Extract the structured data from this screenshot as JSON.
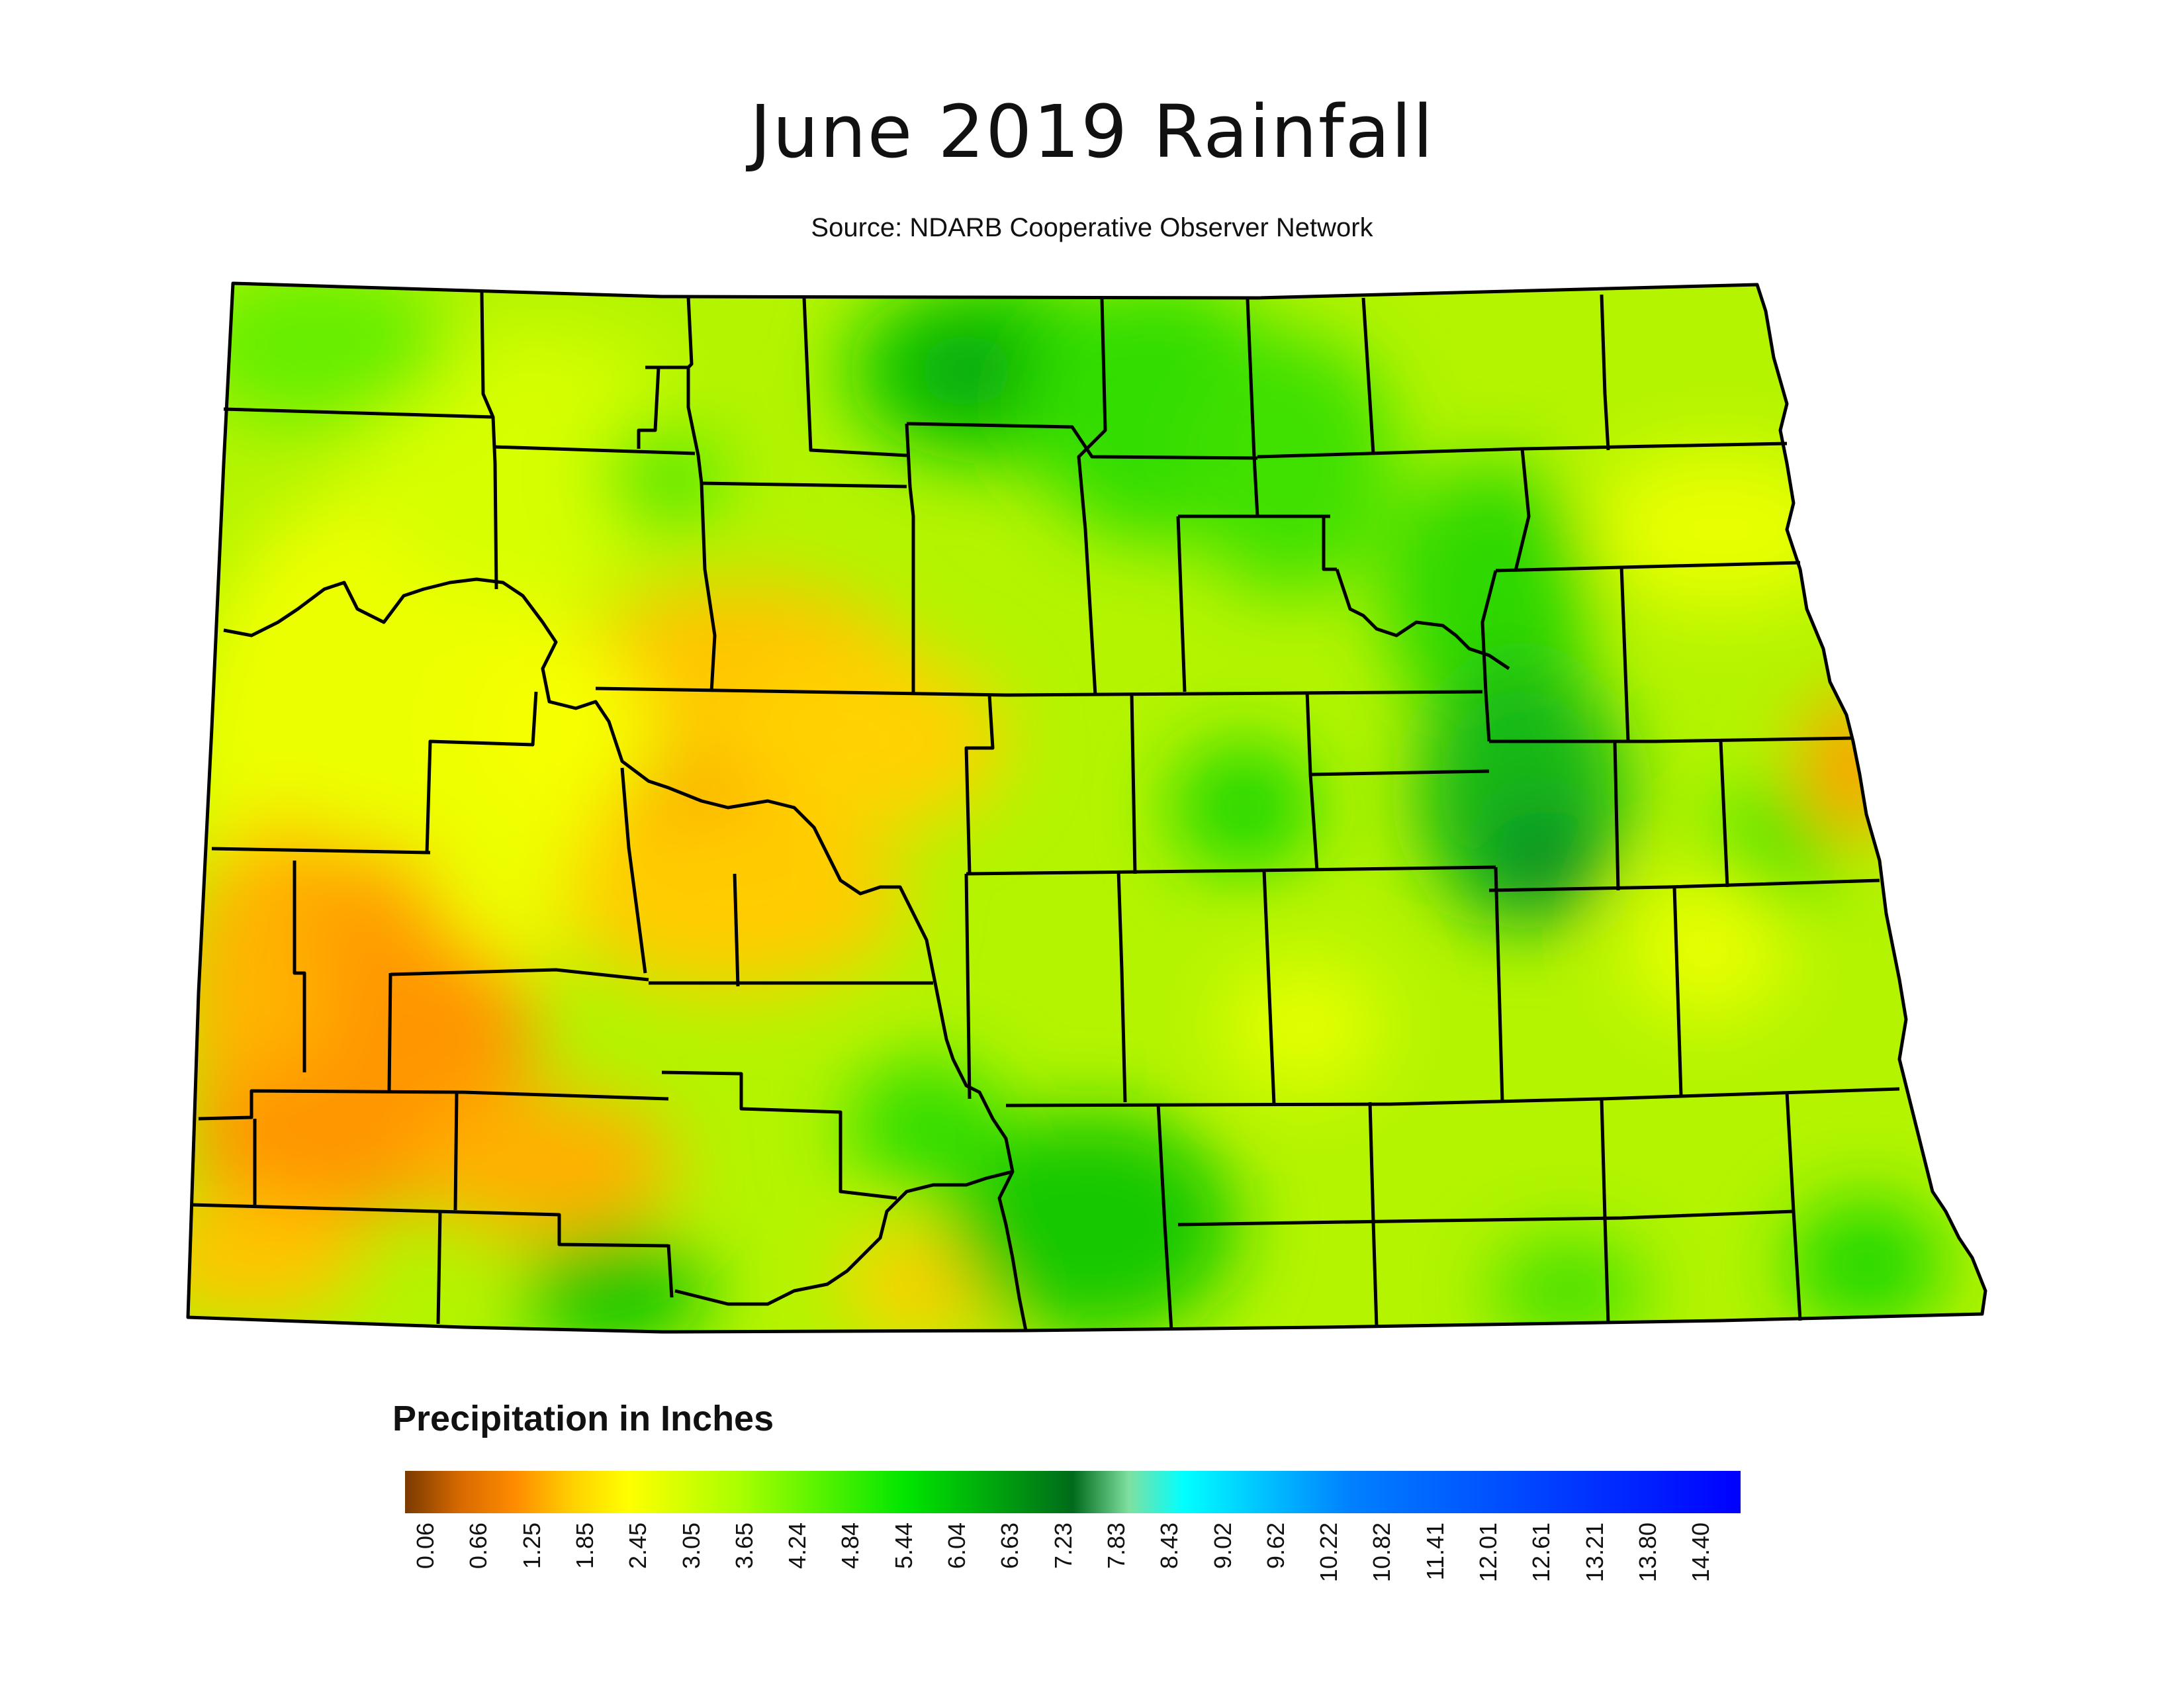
{
  "title": "June 2019 Rainfall",
  "subtitle": "Source: NDARB Cooperative Observer Network",
  "legend": {
    "title": "Precipitation in Inches",
    "ticks": [
      "0.06",
      "0.66",
      "1.25",
      "1.85",
      "2.45",
      "3.05",
      "3.65",
      "4.24",
      "4.84",
      "5.44",
      "6.04",
      "6.63",
      "7.23",
      "7.83",
      "8.43",
      "9.02",
      "9.62",
      "10.22",
      "10.82",
      "11.41",
      "12.01",
      "12.61",
      "13.21",
      "13.80",
      "14.40"
    ],
    "stops": [
      {
        "value": 0.06,
        "color": "#7a3a00"
      },
      {
        "value": 0.66,
        "color": "#d96a00"
      },
      {
        "value": 1.25,
        "color": "#ff8c00"
      },
      {
        "value": 1.85,
        "color": "#ffd000"
      },
      {
        "value": 2.45,
        "color": "#ffff00"
      },
      {
        "value": 3.65,
        "color": "#aaff00"
      },
      {
        "value": 5.44,
        "color": "#00e600"
      },
      {
        "value": 7.23,
        "color": "#006b1a"
      },
      {
        "value": 7.83,
        "color": "#7fe0a0"
      },
      {
        "value": 8.43,
        "color": "#00ffff"
      },
      {
        "value": 10.22,
        "color": "#0080ff"
      },
      {
        "value": 14.4,
        "color": "#0000ff"
      }
    ]
  }
}
